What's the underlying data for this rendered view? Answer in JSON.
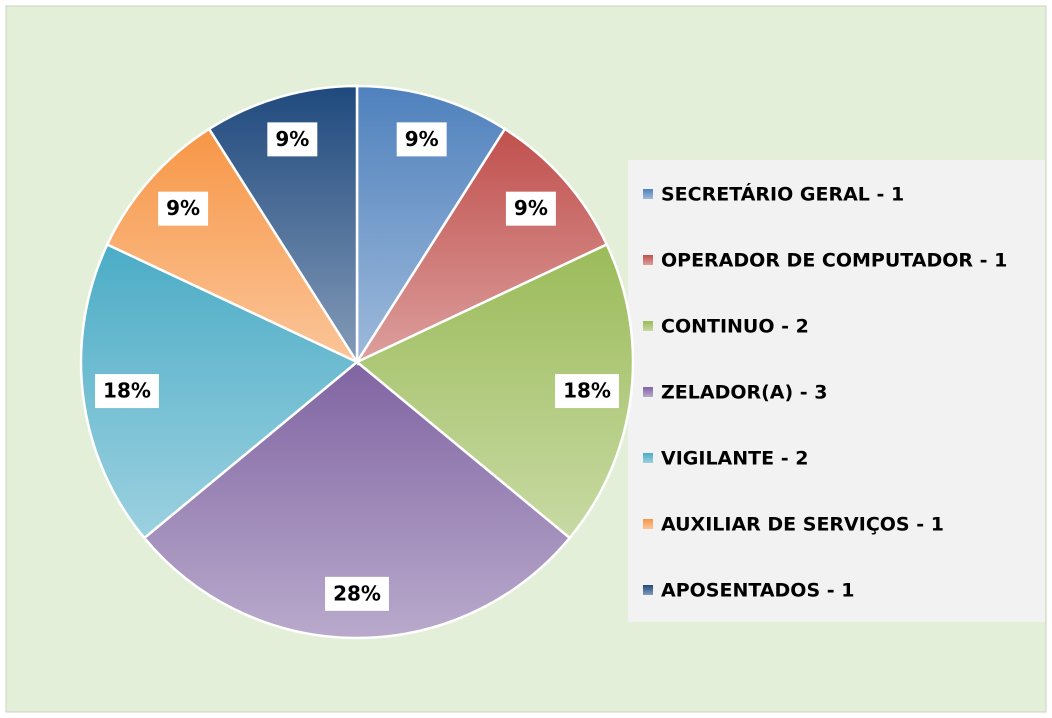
{
  "chart_data": {
    "type": "pie",
    "categories": [
      "SECRETÁRIO GERAL - 1",
      "OPERADOR DE COMPUTADOR - 1",
      "CONTINUO - 2",
      "ZELADOR(A) - 3",
      "VIGILANTE - 2",
      "AUXILIAR DE SERVIÇOS - 1",
      "APOSENTADOS - 1"
    ],
    "values": [
      9,
      9,
      18,
      28,
      18,
      9,
      9
    ],
    "value_labels": [
      "9%",
      "9%",
      "18%",
      "28%",
      "18%",
      "9%",
      "9%"
    ],
    "colors": [
      "#4f81bd",
      "#c0504d",
      "#9bbb59",
      "#8064a2",
      "#4bacc6",
      "#f79646",
      "#1f497d"
    ],
    "legend": "right"
  }
}
